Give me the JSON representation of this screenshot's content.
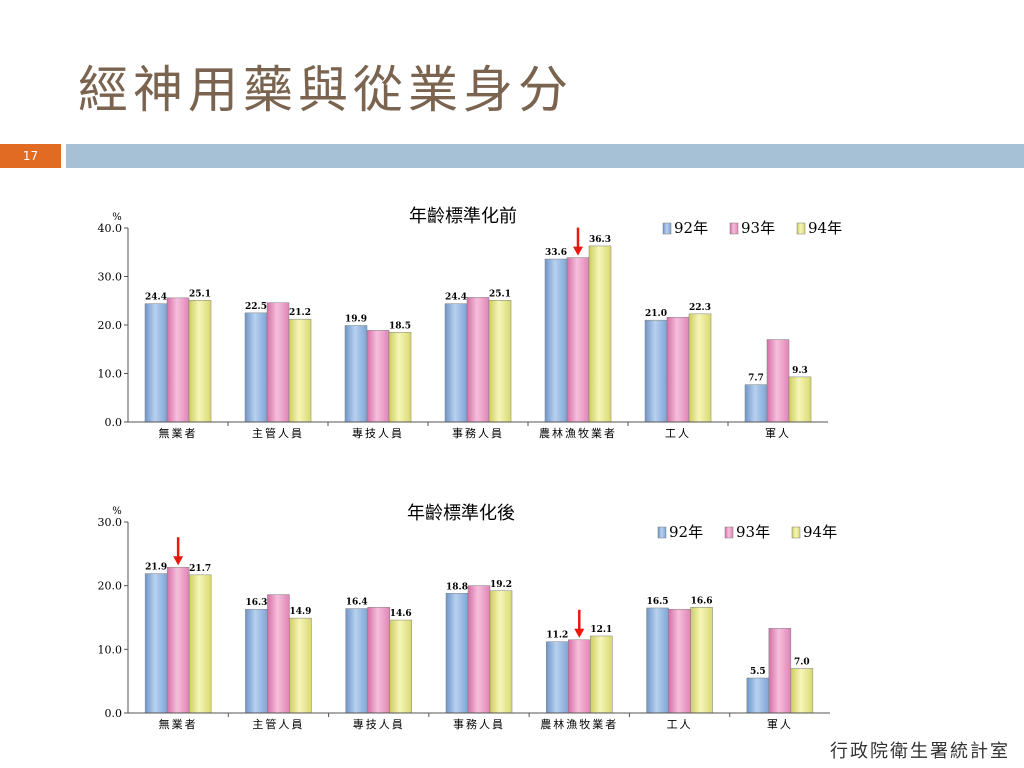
{
  "slide": {
    "title": "經神用藥與從業身分",
    "page_number": "17",
    "footer": "行政院衛生署統計室",
    "colors": {
      "title": "#7a634f",
      "header_bar": "#a6c0d6",
      "page_badge": "#e26b24",
      "arrow": "#e8180e"
    }
  },
  "chart_data": [
    {
      "type": "bar",
      "title": "年齡標準化前",
      "ylabel": "%",
      "xlabel": "",
      "ylim": [
        0,
        40
      ],
      "yticks": [
        "0.0",
        "10.0",
        "20.0",
        "30.0",
        "40.0"
      ],
      "grid": false,
      "legend_position": "top-right",
      "categories": [
        "無業者",
        "主管人員",
        "專技人員",
        "事務人員",
        "農林漁牧業者",
        "工人",
        "軍人"
      ],
      "series": [
        {
          "name": "92年",
          "color": "#8db3e2",
          "values": [
            24.4,
            22.5,
            19.9,
            24.4,
            33.6,
            21.0,
            7.7
          ]
        },
        {
          "name": "93年",
          "color": "#e993bf",
          "values": [
            25.6,
            24.6,
            18.9,
            25.7,
            33.9,
            21.6,
            17.0
          ]
        },
        {
          "name": "94年",
          "color": "#e6e68c",
          "values": [
            25.1,
            21.2,
            18.5,
            25.1,
            36.3,
            22.3,
            9.3
          ]
        }
      ],
      "data_labels": [
        {
          "category": "無業者",
          "series": "92年",
          "text": "24.4"
        },
        {
          "category": "無業者",
          "series": "94年",
          "text": "25.1"
        },
        {
          "category": "主管人員",
          "series": "92年",
          "text": "22.5"
        },
        {
          "category": "主管人員",
          "series": "94年",
          "text": "21.2"
        },
        {
          "category": "專技人員",
          "series": "92年",
          "text": "19.9"
        },
        {
          "category": "專技人員",
          "series": "94年",
          "text": "18.5"
        },
        {
          "category": "事務人員",
          "series": "92年",
          "text": "24.4"
        },
        {
          "category": "事務人員",
          "series": "94年",
          "text": "25.1"
        },
        {
          "category": "農林漁牧業者",
          "series": "92年",
          "text": "33.6"
        },
        {
          "category": "農林漁牧業者",
          "series": "94年",
          "text": "36.3"
        },
        {
          "category": "工人",
          "series": "92年",
          "text": "21.0"
        },
        {
          "category": "工人",
          "series": "94年",
          "text": "22.3"
        },
        {
          "category": "軍人",
          "series": "92年",
          "text": "7.7"
        },
        {
          "category": "軍人",
          "series": "94年",
          "text": "9.3"
        }
      ],
      "annotations": [
        {
          "type": "arrow-down",
          "category": "農林漁牧業者",
          "series": "93年",
          "color": "#e8180e"
        }
      ]
    },
    {
      "type": "bar",
      "title": "年齡標準化後",
      "ylabel": "%",
      "xlabel": "",
      "ylim": [
        0,
        30
      ],
      "yticks": [
        "0.0",
        "10.0",
        "20.0",
        "30.0"
      ],
      "grid": false,
      "legend_position": "top-right",
      "categories": [
        "無業者",
        "主管人員",
        "專技人員",
        "事務人員",
        "農林漁牧業者",
        "工人",
        "軍人"
      ],
      "series": [
        {
          "name": "92年",
          "color": "#8db3e2",
          "values": [
            21.9,
            16.3,
            16.4,
            18.8,
            11.2,
            16.5,
            5.5
          ]
        },
        {
          "name": "93年",
          "color": "#e993bf",
          "values": [
            22.9,
            18.6,
            16.6,
            20.0,
            11.5,
            16.3,
            13.3
          ]
        },
        {
          "name": "94年",
          "color": "#e6e68c",
          "values": [
            21.7,
            14.9,
            14.6,
            19.2,
            12.1,
            16.6,
            7.0
          ]
        }
      ],
      "data_labels": [
        {
          "category": "無業者",
          "series": "92年",
          "text": "21.9"
        },
        {
          "category": "無業者",
          "series": "94年",
          "text": "21.7"
        },
        {
          "category": "主管人員",
          "series": "92年",
          "text": "16.3"
        },
        {
          "category": "主管人員",
          "series": "94年",
          "text": "14.9"
        },
        {
          "category": "專技人員",
          "series": "92年",
          "text": "16.4"
        },
        {
          "category": "專技人員",
          "series": "94年",
          "text": "14.6"
        },
        {
          "category": "事務人員",
          "series": "92年",
          "text": "18.8"
        },
        {
          "category": "事務人員",
          "series": "94年",
          "text": "19.2"
        },
        {
          "category": "農林漁牧業者",
          "series": "92年",
          "text": "11.2"
        },
        {
          "category": "農林漁牧業者",
          "series": "94年",
          "text": "12.1"
        },
        {
          "category": "工人",
          "series": "92年",
          "text": "16.5"
        },
        {
          "category": "工人",
          "series": "94年",
          "text": "16.6"
        },
        {
          "category": "軍人",
          "series": "92年",
          "text": "5.5"
        },
        {
          "category": "軍人",
          "series": "94年",
          "text": "7.0"
        }
      ],
      "annotations": [
        {
          "type": "arrow-down",
          "category": "無業者",
          "series": "93年",
          "color": "#e8180e"
        },
        {
          "type": "arrow-down",
          "category": "農林漁牧業者",
          "series": "93年",
          "color": "#e8180e"
        }
      ]
    }
  ]
}
